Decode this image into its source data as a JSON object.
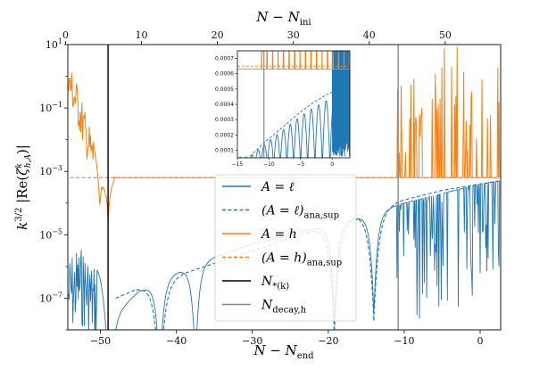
{
  "chart_data": {
    "type": "line",
    "xlabel": "N − N",
    "xlabel_sub": "end",
    "top_xlabel": "N − N",
    "top_xlabel_sub": "ini",
    "ylabel": "k^{3/2} |Re(ζ^k_{h,A})|",
    "yscale": "log",
    "xlim": [
      -54.3,
      2.7
    ],
    "ylim_log10": [
      -8,
      1
    ],
    "xticks": [
      "−50",
      "−40",
      "−30",
      "−20",
      "−10",
      "0"
    ],
    "xtick_values": [
      -50,
      -40,
      -30,
      -20,
      -10,
      0
    ],
    "top_xticks": [
      "0",
      "10",
      "20",
      "30",
      "40",
      "50"
    ],
    "top_xtick_values": [
      0,
      10,
      20,
      30,
      40,
      50
    ],
    "top_offset": 54.6,
    "yticks": [
      {
        "base": "10",
        "exp": "1",
        "log": 1
      },
      {
        "base": "10",
        "exp": "−1",
        "log": -1
      },
      {
        "base": "10",
        "exp": "−3",
        "log": -3
      },
      {
        "base": "10",
        "exp": "−5",
        "log": -5
      },
      {
        "base": "10",
        "exp": "−7",
        "log": -7
      }
    ],
    "vlines": [
      {
        "name": "N_*(k)",
        "x": -49,
        "color": "#000000"
      },
      {
        "name": "N_decay,h",
        "x": -10.8,
        "color": "#888888"
      }
    ],
    "series": [
      {
        "name": "A = ℓ",
        "style": "solid",
        "color": "#1f77b4",
        "x": [
          -54,
          -52.9,
          -52,
          -50,
          -48.5,
          -45,
          -40,
          -35,
          -30,
          -25,
          -20,
          -15,
          -10,
          -5,
          0,
          2.5
        ],
        "log10_y": [
          -5.6,
          -5.3,
          -5.4,
          -6.2,
          -7.6,
          -6.8,
          -6.2,
          -5.7,
          -5.3,
          -5.0,
          -4.7,
          -4.4,
          -4.0,
          -3.7,
          -3.4,
          -3.3
        ]
      },
      {
        "name": "(A = ℓ)_ana,sup",
        "style": "dashed",
        "color": "#1f77b4",
        "x": [
          -48,
          -45,
          -40,
          -35,
          -30,
          -25,
          -20,
          -15,
          -10,
          -5,
          0,
          2.5
        ],
        "log10_y": [
          -7.0,
          -6.7,
          -6.3,
          -5.9,
          -5.5,
          -5.1,
          -4.7,
          -4.3,
          -3.9,
          -3.6,
          -3.4,
          -3.3
        ]
      },
      {
        "name": "A = h",
        "style": "solid",
        "color": "#ff7f0e",
        "x": [
          -54,
          -53,
          -52,
          -51,
          -50,
          -49.5,
          -49,
          -48,
          -45,
          -40,
          -30,
          -20,
          -10,
          0,
          2.5
        ],
        "log10_y": [
          0.3,
          -0.3,
          -1.2,
          -2.0,
          -2.7,
          -3.0,
          -3.1,
          -3.2,
          -3.2,
          -3.2,
          -3.2,
          -3.2,
          -3.2,
          -3.2,
          -3.2
        ]
      },
      {
        "name": "(A = h)_ana,sup",
        "style": "dashed",
        "color": "#ff7f0e",
        "x": [
          -54,
          -40,
          -20,
          0,
          2.5
        ],
        "log10_y": [
          -3.2,
          -3.2,
          -3.2,
          -3.2,
          -3.2
        ]
      }
    ],
    "legend": {
      "placement": "center",
      "entries": [
        {
          "label": "A = ℓ",
          "sub": "",
          "color": "#1f77b4",
          "style": "solid"
        },
        {
          "label": "(A = ℓ)",
          "sub": "ana,sup",
          "color": "#1f77b4",
          "style": "dashed"
        },
        {
          "label": "A = h",
          "sub": "",
          "color": "#ff7f0e",
          "style": "solid"
        },
        {
          "label": "(A = h)",
          "sub": "ana,sup",
          "color": "#ff7f0e",
          "style": "dashed"
        },
        {
          "label": "N",
          "sub": "*(k)",
          "color": "#000000",
          "style": "solid"
        },
        {
          "label": "N",
          "sub": "decay,h",
          "color": "#888888",
          "style": "solid"
        }
      ]
    },
    "inset": {
      "placement": "top-center",
      "xlim": [
        -15,
        2.8
      ],
      "ylim": [
        5e-05,
        0.00075
      ],
      "xticks": [
        "−15",
        "−10",
        "−5",
        "0"
      ],
      "xtick_values": [
        -15,
        -10,
        -5,
        0
      ],
      "yticks": [
        "0.0001",
        "0.0002",
        "0.0003",
        "0.0004",
        "0.0005",
        "0.0006",
        "0.0007"
      ],
      "ytick_values": [
        0.0001,
        0.0002,
        0.0003,
        0.0004,
        0.0005,
        0.0006,
        0.0007
      ],
      "h_solid_level": 0.00063,
      "h_dashed_level": 0.00065,
      "l_dashed_x": [
        -13,
        -11,
        -9,
        -7,
        -5,
        -3,
        -1,
        1,
        2.5
      ],
      "l_dashed_y": [
        6e-05,
        0.00014,
        0.00021,
        0.00028,
        0.00035,
        0.00041,
        0.00046,
        0.0005,
        0.00052
      ]
    }
  }
}
